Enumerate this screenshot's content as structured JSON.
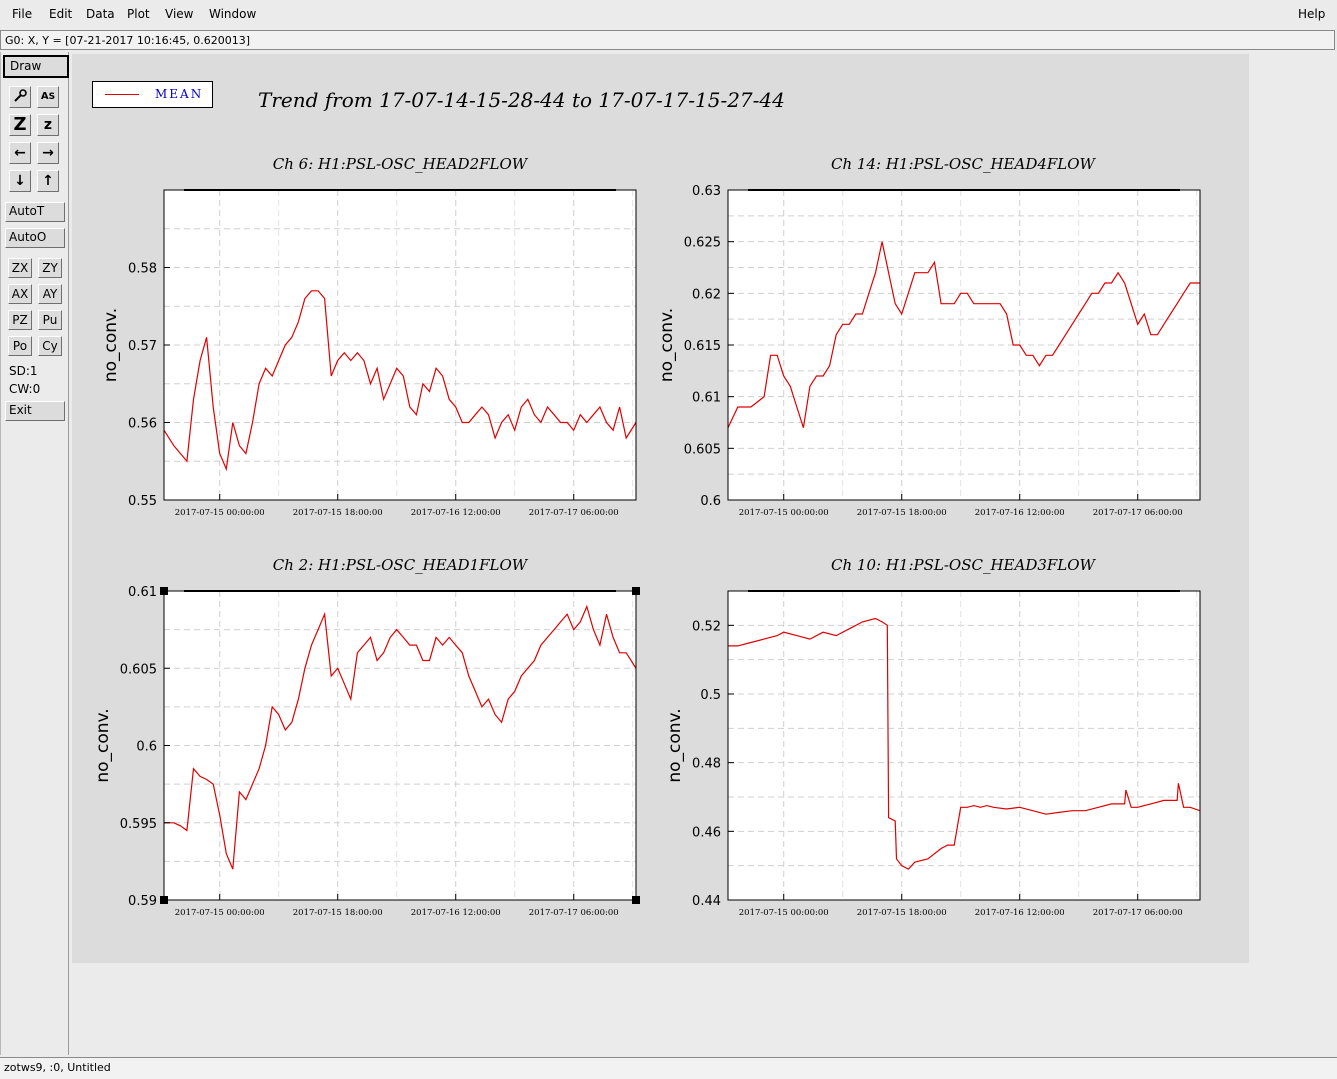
{
  "menubar": {
    "items": [
      "File",
      "Edit",
      "Data",
      "Plot",
      "View",
      "Window"
    ],
    "help": "Help"
  },
  "coordbar": {
    "text": "G0: X, Y = [07-21-2017 10:16:45, 0.620013]"
  },
  "toolpanel": {
    "draw": "Draw",
    "autot": "AutoT",
    "autoo": "AutoO",
    "zoom_buttons": [
      "ZX",
      "ZY",
      "AX",
      "AY",
      "PZ",
      "Pu",
      "Po",
      "Cy"
    ],
    "sd": "SD:1",
    "cw": "CW:0",
    "exit": "Exit"
  },
  "legend": {
    "label": "MEAN",
    "color": "#e00000"
  },
  "main_title": "Trend from 17-07-14-15-28-44 to 17-07-17-15-27-44",
  "status": {
    "text": "zotws9, :0, Untitled"
  },
  "chart_data": [
    {
      "type": "line",
      "title": "Ch 6: H1:PSL-OSC_HEAD2FLOW",
      "ylabel": "no_conv.",
      "ylim": [
        0.55,
        0.59
      ],
      "yticks": [
        0.55,
        0.56,
        0.57,
        0.58
      ],
      "ytick_labels": [
        "0.55",
        "0.56",
        "0.57",
        "0.58"
      ],
      "xlim": [
        -8.5,
        63.5
      ],
      "xticks": [
        0,
        18,
        36,
        54
      ],
      "xtick_labels": [
        "2017-07-15 00:00:00",
        "2017-07-15 18:00:00",
        "2017-07-16 12:00:00",
        "2017-07-17 06:00:00"
      ],
      "series": [
        {
          "color": "#e00000",
          "x": [
            -8.5,
            -7,
            -6,
            -5,
            -4,
            -3,
            -2,
            -1,
            0,
            1,
            2,
            3,
            4,
            5,
            6,
            7,
            8,
            9,
            10,
            11,
            12,
            13,
            14,
            15,
            16,
            17,
            18,
            19,
            20,
            21,
            22,
            23,
            24,
            25,
            26,
            27,
            28,
            29,
            30,
            31,
            32,
            33,
            34,
            35,
            36,
            37,
            38,
            39,
            40,
            41,
            42,
            43,
            44,
            45,
            46,
            47,
            48,
            49,
            50,
            51,
            52,
            53,
            54,
            55,
            56,
            57,
            58,
            59,
            60,
            61,
            62,
            63.5
          ],
          "y": [
            0.559,
            0.557,
            0.556,
            0.555,
            0.563,
            0.568,
            0.571,
            0.562,
            0.556,
            0.554,
            0.56,
            0.557,
            0.556,
            0.56,
            0.565,
            0.567,
            0.566,
            0.568,
            0.57,
            0.571,
            0.573,
            0.576,
            0.577,
            0.577,
            0.576,
            0.566,
            0.568,
            0.569,
            0.568,
            0.569,
            0.568,
            0.565,
            0.567,
            0.563,
            0.565,
            0.567,
            0.566,
            0.562,
            0.561,
            0.565,
            0.564,
            0.567,
            0.566,
            0.563,
            0.562,
            0.56,
            0.56,
            0.561,
            0.562,
            0.561,
            0.558,
            0.56,
            0.561,
            0.559,
            0.562,
            0.563,
            0.561,
            0.56,
            0.562,
            0.561,
            0.56,
            0.56,
            0.559,
            0.561,
            0.56,
            0.561,
            0.562,
            0.56,
            0.559,
            0.562,
            0.558,
            0.56
          ]
        }
      ]
    },
    {
      "type": "line",
      "title": "Ch 14: H1:PSL-OSC_HEAD4FLOW",
      "ylabel": "no_conv.",
      "ylim": [
        0.6,
        0.63
      ],
      "yticks": [
        0.6,
        0.605,
        0.61,
        0.615,
        0.62,
        0.625,
        0.63
      ],
      "ytick_labels": [
        "0.6",
        "0.605",
        "0.61",
        "0.615",
        "0.62",
        "0.625",
        "0.63"
      ],
      "xlim": [
        -8.5,
        63.5
      ],
      "xticks": [
        0,
        18,
        36,
        54
      ],
      "xtick_labels": [
        "2017-07-15 00:00:00",
        "2017-07-15 18:00:00",
        "2017-07-16 12:00:00",
        "2017-07-17 06:00:00"
      ],
      "series": [
        {
          "color": "#e00000",
          "x": [
            -8.5,
            -7,
            -5,
            -3,
            -2,
            -1,
            0,
            1,
            2,
            3,
            4,
            5,
            6,
            7,
            8,
            9,
            10,
            11,
            12,
            13,
            14,
            15,
            16,
            17,
            18,
            19,
            20,
            21,
            22,
            23,
            24,
            25,
            26,
            27,
            28,
            29,
            30,
            31,
            32,
            33,
            34,
            35,
            36,
            37,
            38,
            39,
            40,
            41,
            42,
            43,
            44,
            45,
            46,
            47,
            48,
            49,
            50,
            51,
            52,
            53,
            54,
            55,
            56,
            57,
            58,
            59,
            60,
            61,
            62,
            63.5
          ],
          "y": [
            0.607,
            0.609,
            0.609,
            0.61,
            0.614,
            0.614,
            0.612,
            0.611,
            0.609,
            0.607,
            0.611,
            0.612,
            0.612,
            0.613,
            0.616,
            0.617,
            0.617,
            0.618,
            0.618,
            0.62,
            0.622,
            0.625,
            0.622,
            0.619,
            0.618,
            0.62,
            0.622,
            0.622,
            0.622,
            0.623,
            0.619,
            0.619,
            0.619,
            0.62,
            0.62,
            0.619,
            0.619,
            0.619,
            0.619,
            0.619,
            0.618,
            0.615,
            0.615,
            0.614,
            0.614,
            0.613,
            0.614,
            0.614,
            0.615,
            0.616,
            0.617,
            0.618,
            0.619,
            0.62,
            0.62,
            0.621,
            0.621,
            0.622,
            0.621,
            0.619,
            0.617,
            0.618,
            0.616,
            0.616,
            0.617,
            0.618,
            0.619,
            0.62,
            0.621,
            0.621
          ]
        }
      ]
    },
    {
      "type": "line",
      "title": "Ch 2: H1:PSL-OSC_HEAD1FLOW",
      "ylabel": "no_conv.",
      "ylim": [
        0.59,
        0.61
      ],
      "yticks": [
        0.59,
        0.595,
        0.6,
        0.605,
        0.61
      ],
      "ytick_labels": [
        "0.59",
        "0.595",
        "0.6",
        "0.605",
        "0.61"
      ],
      "xlim": [
        -8.5,
        63.5
      ],
      "xticks": [
        0,
        18,
        36,
        54
      ],
      "xtick_labels": [
        "2017-07-15 00:00:00",
        "2017-07-15 18:00:00",
        "2017-07-16 12:00:00",
        "2017-07-17 06:00:00"
      ],
      "series": [
        {
          "color": "#e00000",
          "x": [
            -8.5,
            -7,
            -6,
            -5,
            -4,
            -3,
            -2,
            -1,
            0,
            1,
            2,
            3,
            4,
            5,
            6,
            7,
            8,
            9,
            10,
            11,
            12,
            13,
            14,
            15,
            16,
            17,
            18,
            19,
            20,
            21,
            22,
            23,
            24,
            25,
            26,
            27,
            28,
            29,
            30,
            31,
            32,
            33,
            34,
            35,
            36,
            37,
            38,
            39,
            40,
            41,
            42,
            43,
            44,
            45,
            46,
            47,
            48,
            49,
            50,
            51,
            52,
            53,
            54,
            55,
            56,
            57,
            58,
            59,
            60,
            61,
            62,
            63.5
          ],
          "y": [
            0.595,
            0.595,
            0.5948,
            0.5945,
            0.5985,
            0.598,
            0.5978,
            0.5975,
            0.5955,
            0.593,
            0.592,
            0.597,
            0.5965,
            0.5975,
            0.5985,
            0.6,
            0.6025,
            0.602,
            0.601,
            0.6015,
            0.603,
            0.605,
            0.6065,
            0.6075,
            0.6085,
            0.6045,
            0.605,
            0.604,
            0.603,
            0.606,
            0.6065,
            0.607,
            0.6055,
            0.606,
            0.607,
            0.6075,
            0.607,
            0.6065,
            0.6065,
            0.6055,
            0.6055,
            0.607,
            0.6065,
            0.607,
            0.6065,
            0.606,
            0.6045,
            0.6035,
            0.6025,
            0.603,
            0.602,
            0.6015,
            0.603,
            0.6035,
            0.6045,
            0.605,
            0.6055,
            0.6065,
            0.607,
            0.6075,
            0.608,
            0.6085,
            0.6075,
            0.608,
            0.609,
            0.6075,
            0.6065,
            0.6085,
            0.607,
            0.606,
            0.606,
            0.605
          ]
        }
      ]
    },
    {
      "type": "line",
      "title": "Ch 10: H1:PSL-OSC_HEAD3FLOW",
      "ylabel": "no_conv.",
      "ylim": [
        0.44,
        0.53
      ],
      "yticks": [
        0.44,
        0.46,
        0.48,
        0.5,
        0.52
      ],
      "ytick_labels": [
        "0.44",
        "0.46",
        "0.48",
        "0.5",
        "0.52"
      ],
      "xlim": [
        -8.5,
        63.5
      ],
      "xticks": [
        0,
        18,
        36,
        54
      ],
      "xtick_labels": [
        "2017-07-15 00:00:00",
        "2017-07-15 18:00:00",
        "2017-07-16 12:00:00",
        "2017-07-17 06:00:00"
      ],
      "series": [
        {
          "color": "#e00000",
          "x": [
            -8.5,
            -7,
            -5,
            -3,
            -1,
            0,
            2,
            4,
            6,
            8,
            10,
            12,
            14,
            15,
            15.8,
            16,
            17,
            17.2,
            18,
            19,
            20,
            22,
            24,
            25,
            26,
            27,
            28,
            29,
            30,
            31,
            32,
            34,
            36,
            38,
            40,
            42,
            44,
            46,
            48,
            50,
            52,
            52.2,
            53,
            54,
            56,
            58,
            60,
            60.2,
            61,
            62,
            63.5
          ],
          "y": [
            0.514,
            0.514,
            0.515,
            0.516,
            0.517,
            0.518,
            0.517,
            0.516,
            0.518,
            0.517,
            0.519,
            0.521,
            0.522,
            0.521,
            0.52,
            0.464,
            0.463,
            0.452,
            0.45,
            0.449,
            0.451,
            0.452,
            0.455,
            0.456,
            0.456,
            0.467,
            0.467,
            0.4675,
            0.467,
            0.4675,
            0.467,
            0.4665,
            0.467,
            0.466,
            0.465,
            0.4655,
            0.466,
            0.466,
            0.467,
            0.468,
            0.468,
            0.472,
            0.467,
            0.467,
            0.468,
            0.469,
            0.469,
            0.474,
            0.467,
            0.467,
            0.466
          ]
        }
      ]
    }
  ]
}
